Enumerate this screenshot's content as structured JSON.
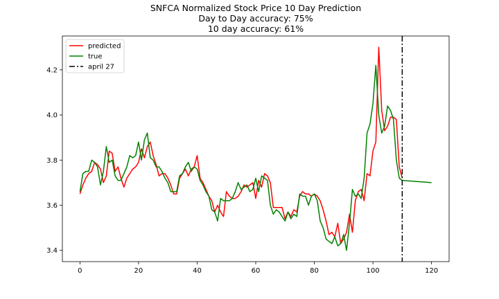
{
  "chart_data": {
    "type": "line",
    "title_lines": [
      "SNFCA Normalized Stock Price 10 Day Prediction",
      "Day to Day accuracy: 75%",
      "10 day accuracy: 61%"
    ],
    "xlabel": "",
    "ylabel": "",
    "xlim": [
      -6,
      126
    ],
    "ylim": [
      3.35,
      4.35
    ],
    "x_ticks": [
      0,
      20,
      40,
      60,
      80,
      100,
      120
    ],
    "y_ticks": [
      3.4,
      3.6,
      3.8,
      4.0,
      4.2
    ],
    "x_tick_labels": [
      "0",
      "20",
      "40",
      "60",
      "80",
      "100",
      "120"
    ],
    "y_tick_labels": [
      "3.4",
      "3.6",
      "3.8",
      "4.0",
      "4.2"
    ],
    "grid": false,
    "legend_position": "top-left",
    "series": [
      {
        "name": "predicted",
        "color": "#ff0000",
        "x": [
          0,
          1,
          2,
          3,
          4,
          5,
          6,
          7,
          8,
          9,
          10,
          11,
          12,
          13,
          14,
          15,
          16,
          17,
          18,
          19,
          20,
          21,
          22,
          23,
          24,
          25,
          26,
          27,
          28,
          29,
          30,
          31,
          32,
          33,
          34,
          35,
          36,
          37,
          38,
          39,
          40,
          41,
          42,
          43,
          44,
          45,
          46,
          47,
          48,
          49,
          50,
          51,
          52,
          53,
          54,
          55,
          56,
          57,
          58,
          59,
          60,
          61,
          62,
          63,
          64,
          65,
          66,
          67,
          68,
          69,
          70,
          71,
          72,
          73,
          74,
          75,
          76,
          77,
          78,
          79,
          80,
          81,
          82,
          83,
          84,
          85,
          86,
          87,
          88,
          89,
          90,
          91,
          92,
          93,
          94,
          95,
          96,
          97,
          98,
          99,
          100,
          101,
          102,
          103,
          104,
          105,
          106,
          107,
          108,
          109,
          110
        ],
        "values": [
          3.65,
          3.69,
          3.72,
          3.74,
          3.75,
          3.79,
          3.78,
          3.76,
          3.7,
          3.73,
          3.84,
          3.83,
          3.75,
          3.77,
          3.72,
          3.68,
          3.72,
          3.74,
          3.76,
          3.77,
          3.79,
          3.85,
          3.81,
          3.86,
          3.88,
          3.82,
          3.78,
          3.73,
          3.74,
          3.74,
          3.72,
          3.69,
          3.65,
          3.65,
          3.72,
          3.74,
          3.76,
          3.73,
          3.76,
          3.77,
          3.82,
          3.72,
          3.7,
          3.67,
          3.64,
          3.62,
          3.57,
          3.6,
          3.57,
          3.55,
          3.66,
          3.64,
          3.63,
          3.63,
          3.64,
          3.66,
          3.69,
          3.68,
          3.69,
          3.7,
          3.63,
          3.71,
          3.68,
          3.74,
          3.73,
          3.7,
          3.59,
          3.59,
          3.59,
          3.59,
          3.54,
          3.57,
          3.55,
          3.58,
          3.57,
          3.64,
          3.66,
          3.65,
          3.65,
          3.64,
          3.65,
          3.64,
          3.62,
          3.58,
          3.53,
          3.47,
          3.48,
          3.46,
          3.52,
          3.43,
          3.45,
          3.48,
          3.56,
          3.48,
          3.62,
          3.66,
          3.67,
          3.62,
          3.74,
          3.73,
          3.84,
          3.88,
          4.3,
          4.02,
          3.93,
          3.95,
          3.99,
          3.99,
          3.98,
          3.77,
          3.72
        ]
      },
      {
        "name": "true",
        "color": "#008000",
        "x": [
          0,
          1,
          2,
          3,
          4,
          5,
          6,
          7,
          8,
          9,
          10,
          11,
          12,
          13,
          14,
          15,
          16,
          17,
          18,
          19,
          20,
          21,
          22,
          23,
          24,
          25,
          26,
          27,
          28,
          29,
          30,
          31,
          32,
          33,
          34,
          35,
          36,
          37,
          38,
          39,
          40,
          41,
          42,
          43,
          44,
          45,
          46,
          47,
          48,
          49,
          50,
          51,
          52,
          53,
          54,
          55,
          56,
          57,
          58,
          59,
          60,
          61,
          62,
          63,
          64,
          65,
          66,
          67,
          68,
          69,
          70,
          71,
          72,
          73,
          74,
          75,
          76,
          77,
          78,
          79,
          80,
          81,
          82,
          83,
          84,
          85,
          86,
          87,
          88,
          89,
          90,
          91,
          92,
          93,
          94,
          95,
          96,
          97,
          98,
          99,
          100,
          101,
          102,
          103,
          104,
          105,
          106,
          107,
          108,
          109,
          110,
          120
        ],
        "values": [
          3.66,
          3.74,
          3.75,
          3.75,
          3.8,
          3.79,
          3.77,
          3.69,
          3.75,
          3.86,
          3.79,
          3.8,
          3.73,
          3.71,
          3.71,
          3.74,
          3.77,
          3.82,
          3.81,
          3.82,
          3.88,
          3.8,
          3.89,
          3.92,
          3.81,
          3.8,
          3.77,
          3.77,
          3.75,
          3.72,
          3.7,
          3.66,
          3.66,
          3.66,
          3.73,
          3.74,
          3.77,
          3.79,
          3.75,
          3.77,
          3.76,
          3.71,
          3.69,
          3.66,
          3.64,
          3.58,
          3.57,
          3.53,
          3.63,
          3.62,
          3.62,
          3.62,
          3.63,
          3.66,
          3.7,
          3.67,
          3.68,
          3.69,
          3.66,
          3.67,
          3.72,
          3.66,
          3.73,
          3.72,
          3.71,
          3.6,
          3.56,
          3.58,
          3.57,
          3.55,
          3.53,
          3.57,
          3.54,
          3.56,
          3.55,
          3.65,
          3.64,
          3.64,
          3.6,
          3.64,
          3.65,
          3.62,
          3.53,
          3.5,
          3.45,
          3.44,
          3.43,
          3.46,
          3.42,
          3.43,
          3.47,
          3.4,
          3.52,
          3.67,
          3.64,
          3.65,
          3.63,
          3.72,
          3.92,
          3.96,
          4.05,
          4.22,
          4.0,
          3.92,
          3.95,
          4.04,
          4.02,
          3.98,
          3.8,
          3.72,
          3.71,
          3.7
        ]
      }
    ],
    "vlines": [
      {
        "name": "april 27",
        "x": 110,
        "color": "#000000",
        "style": "dash-dot"
      }
    ]
  }
}
